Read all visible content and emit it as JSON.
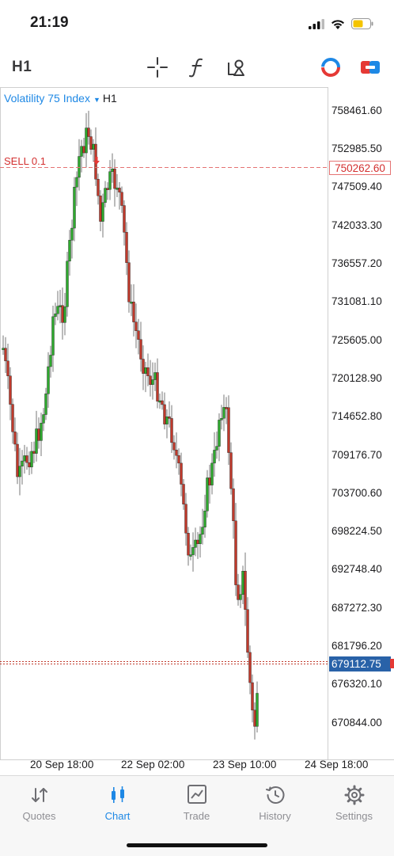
{
  "status_bar": {
    "time": "21:19"
  },
  "toolbar": {
    "timeframe": "H1",
    "tools": [
      "crosshair-icon",
      "function-icon",
      "objects-icon",
      "one-click-trading-icon",
      "trade-panel-icon"
    ]
  },
  "chart": {
    "symbol": "Volatility 75 Index",
    "symbol_timeframe": "H1",
    "price_axis": [
      "758461.60",
      "752985.50",
      "747509.40",
      "742033.30",
      "736557.20",
      "731081.10",
      "725605.00",
      "720128.90",
      "714652.80",
      "709176.70",
      "703700.60",
      "698224.50",
      "692748.40",
      "687272.30",
      "681796.20",
      "676320.10",
      "670844.00"
    ],
    "time_axis": [
      "20 Sep 18:00",
      "22 Sep 02:00",
      "23 Sep 10:00",
      "24 Sep 18:00"
    ],
    "order": {
      "label": "SELL 0.1",
      "price": "750262.60"
    },
    "current_price": "679112.75",
    "colors": {
      "bull": "#2eaa2e",
      "bear": "#c0392b",
      "order_line": "#e57373",
      "current_line": "#c0392b",
      "accent": "#1e88e5"
    }
  },
  "tabs": [
    {
      "label": "Quotes",
      "icon": "quotes-icon"
    },
    {
      "label": "Chart",
      "icon": "chart-icon",
      "active": true
    },
    {
      "label": "Trade",
      "icon": "trade-icon"
    },
    {
      "label": "History",
      "icon": "history-icon"
    },
    {
      "label": "Settings",
      "icon": "settings-icon"
    }
  ]
}
